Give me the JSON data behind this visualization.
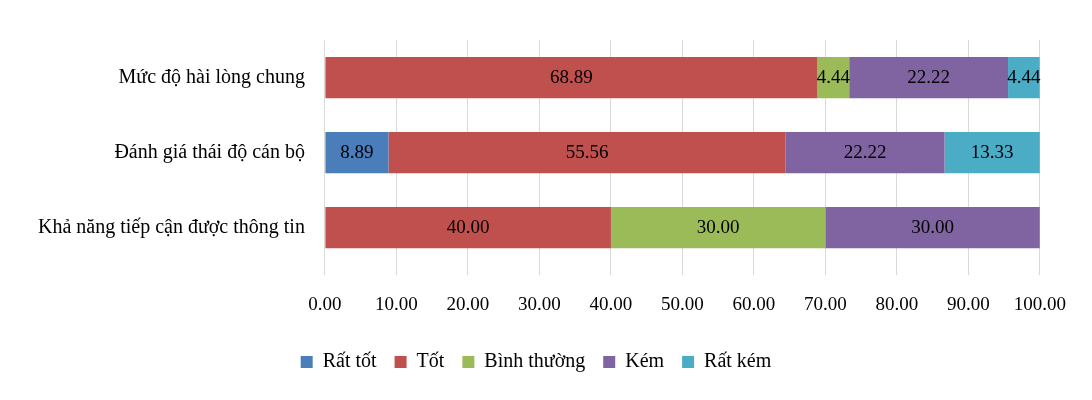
{
  "chart_data": {
    "type": "bar",
    "orientation": "horizontal",
    "stacked": true,
    "categories": [
      "Mức độ hài lòng chung",
      "Đánh giá thái độ cán bộ",
      "Khả năng tiếp cận được thông tin"
    ],
    "series": [
      {
        "name": "Rất tốt",
        "color": "#4a7ebb",
        "values": [
          null,
          8.89,
          null
        ],
        "value_labels": [
          null,
          "8.89",
          null
        ]
      },
      {
        "name": "Tốt",
        "color": "#c0504d",
        "values": [
          68.89,
          55.56,
          40
        ],
        "value_labels": [
          "68.89",
          "55.56",
          "40.00"
        ]
      },
      {
        "name": "Bình thường",
        "color": "#9bbb59",
        "values": [
          4.44,
          null,
          30
        ],
        "value_labels": [
          "4.44",
          null,
          "30.00"
        ]
      },
      {
        "name": "Kém",
        "color": "#8064a2",
        "values": [
          22.22,
          22.22,
          30
        ],
        "value_labels": [
          "22.22",
          "22.22",
          "30.00"
        ]
      },
      {
        "name": "Rất kém",
        "color": "#4bacc6",
        "values": [
          4.44,
          13.33,
          null
        ],
        "value_labels": [
          "4.44",
          "13.33",
          null
        ]
      }
    ],
    "xlim": [
      0,
      100
    ],
    "xticks": [
      {
        "value": 0,
        "label": "0.00"
      },
      {
        "value": 10,
        "label": "10.00"
      },
      {
        "value": 20,
        "label": "20.00"
      },
      {
        "value": 30,
        "label": "30.00"
      },
      {
        "value": 40,
        "label": "40.00"
      },
      {
        "value": 50,
        "label": "50.00"
      },
      {
        "value": 60,
        "label": "60.00"
      },
      {
        "value": 70,
        "label": "70.00"
      },
      {
        "value": 80,
        "label": "80.00"
      },
      {
        "value": 90,
        "label": "90.00"
      },
      {
        "value": 100,
        "label": "100.00"
      }
    ],
    "grid": "x",
    "legend": "bottom"
  }
}
